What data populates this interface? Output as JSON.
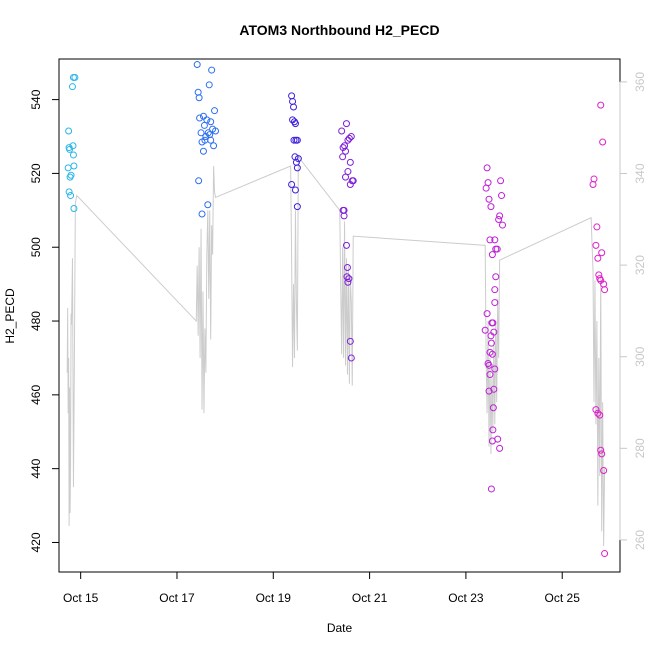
{
  "chart_data": {
    "type": "scatter",
    "title": "ATOM3 Northbound H2_PECD",
    "xlabel": "Date",
    "ylabel": "H2_PECD",
    "xlim": [
      14.55,
      26.2
    ],
    "ylim": [
      412,
      551
    ],
    "y2lim": [
      253,
      365
    ],
    "x_ticks": [
      {
        "x": 15,
        "label": "Oct 15"
      },
      {
        "x": 17,
        "label": "Oct 17"
      },
      {
        "x": 19,
        "label": "Oct 19"
      },
      {
        "x": 21,
        "label": "Oct 21"
      },
      {
        "x": 23,
        "label": "Oct 23"
      },
      {
        "x": 25,
        "label": "Oct 25"
      }
    ],
    "y_ticks": [
      {
        "v": 420,
        "label": "420"
      },
      {
        "v": 440,
        "label": "440"
      },
      {
        "v": 460,
        "label": "460"
      },
      {
        "v": 480,
        "label": "480"
      },
      {
        "v": 500,
        "label": "500"
      },
      {
        "v": 520,
        "label": "520"
      },
      {
        "v": 540,
        "label": "540"
      }
    ],
    "y2_ticks": [
      {
        "v": 260,
        "label": "260"
      },
      {
        "v": 280,
        "label": "280"
      },
      {
        "v": 300,
        "label": "300"
      },
      {
        "v": 320,
        "label": "320"
      },
      {
        "v": 340,
        "label": "340"
      },
      {
        "v": 360,
        "label": "360"
      }
    ],
    "grid": false,
    "series": [
      {
        "color": "#29b6e8",
        "points": [
          [
            14.75,
            531.5
          ],
          [
            14.74,
            521.5
          ],
          [
            14.76,
            527
          ],
          [
            14.77,
            526.5
          ],
          [
            14.78,
            519
          ],
          [
            14.8,
            519.5
          ],
          [
            14.76,
            515
          ],
          [
            14.79,
            514
          ],
          [
            14.84,
            527.5
          ],
          [
            14.85,
            525
          ],
          [
            14.86,
            522
          ],
          [
            14.86,
            510.5
          ],
          [
            14.83,
            543.5
          ],
          [
            14.85,
            546
          ],
          [
            14.88,
            546
          ]
        ]
      },
      {
        "color": "#2c6ff0",
        "points": [
          [
            17.42,
            549.5
          ],
          [
            17.44,
            542
          ],
          [
            17.46,
            540.5
          ],
          [
            17.47,
            535
          ],
          [
            17.5,
            531
          ],
          [
            17.52,
            528.5
          ],
          [
            17.55,
            535.5
          ],
          [
            17.57,
            533
          ],
          [
            17.6,
            530
          ],
          [
            17.62,
            534.5
          ],
          [
            17.65,
            531
          ],
          [
            17.67,
            544
          ],
          [
            17.7,
            534
          ],
          [
            17.72,
            548
          ],
          [
            17.74,
            532
          ],
          [
            17.76,
            527.5
          ],
          [
            17.78,
            537
          ],
          [
            17.8,
            531.5
          ],
          [
            17.45,
            518
          ],
          [
            17.52,
            509
          ],
          [
            17.55,
            526
          ],
          [
            17.58,
            529
          ],
          [
            17.64,
            511.5
          ],
          [
            17.68,
            530.5
          ],
          [
            17.7,
            529
          ]
        ]
      },
      {
        "color": "#3d20dd",
        "points": [
          [
            19.38,
            541
          ],
          [
            19.4,
            539.5
          ],
          [
            19.42,
            538
          ],
          [
            19.4,
            534.5
          ],
          [
            19.44,
            534
          ],
          [
            19.46,
            533.5
          ],
          [
            19.43,
            529
          ],
          [
            19.47,
            529
          ],
          [
            19.5,
            529
          ],
          [
            19.45,
            524.5
          ],
          [
            19.48,
            523
          ],
          [
            19.52,
            524
          ],
          [
            19.5,
            521.5
          ],
          [
            19.38,
            517
          ],
          [
            19.46,
            515.5
          ],
          [
            19.5,
            511
          ]
        ]
      },
      {
        "color": "#7f1fd8",
        "points": [
          [
            20.42,
            531.5
          ],
          [
            20.45,
            527
          ],
          [
            20.48,
            527.5
          ],
          [
            20.5,
            526
          ],
          [
            20.52,
            533.5
          ],
          [
            20.55,
            529
          ],
          [
            20.58,
            529.5
          ],
          [
            20.6,
            523
          ],
          [
            20.62,
            530
          ],
          [
            20.44,
            524.5
          ],
          [
            20.5,
            519
          ],
          [
            20.55,
            520.5
          ],
          [
            20.6,
            517
          ],
          [
            20.64,
            518
          ],
          [
            20.66,
            518
          ],
          [
            20.45,
            510
          ],
          [
            20.47,
            510
          ],
          [
            20.47,
            508.5
          ],
          [
            20.52,
            500.5
          ],
          [
            20.54,
            494.5
          ],
          [
            20.53,
            492
          ],
          [
            20.55,
            490.5
          ],
          [
            20.57,
            491.5
          ],
          [
            20.6,
            474.5
          ],
          [
            20.62,
            470
          ]
        ]
      },
      {
        "color": "#c020d8",
        "points": [
          [
            23.44,
            521.5
          ],
          [
            23.42,
            516
          ],
          [
            23.46,
            517.5
          ],
          [
            23.48,
            513
          ],
          [
            23.5,
            502
          ],
          [
            23.52,
            511
          ],
          [
            23.55,
            498
          ],
          [
            23.6,
            502
          ],
          [
            23.62,
            499.5
          ],
          [
            23.65,
            499.5
          ],
          [
            23.68,
            507.5
          ],
          [
            23.7,
            508.5
          ],
          [
            23.72,
            518
          ],
          [
            23.74,
            514
          ],
          [
            23.76,
            506
          ],
          [
            23.4,
            477.5
          ],
          [
            23.44,
            482
          ],
          [
            23.46,
            468.5
          ],
          [
            23.48,
            461
          ],
          [
            23.5,
            465.5
          ],
          [
            23.52,
            476
          ],
          [
            23.53,
            474
          ],
          [
            23.54,
            479.5
          ],
          [
            23.56,
            479.5
          ],
          [
            23.58,
            477
          ],
          [
            23.6,
            467
          ],
          [
            23.62,
            492
          ],
          [
            23.6,
            488.5
          ],
          [
            23.6,
            485
          ],
          [
            23.58,
            461.5
          ],
          [
            23.56,
            450.5
          ],
          [
            23.55,
            447.5
          ],
          [
            23.66,
            448
          ],
          [
            23.7,
            445.5
          ],
          [
            23.53,
            434.5
          ],
          [
            23.5,
            471.5
          ],
          [
            23.55,
            471
          ],
          [
            23.48,
            468
          ],
          [
            23.57,
            456.5
          ]
        ]
      },
      {
        "color": "#e020c8",
        "points": [
          [
            25.8,
            538.5
          ],
          [
            25.84,
            528.5
          ],
          [
            25.66,
            518.5
          ],
          [
            25.64,
            517
          ],
          [
            25.72,
            505.5
          ],
          [
            25.7,
            500.5
          ],
          [
            25.74,
            497
          ],
          [
            25.82,
            498.5
          ],
          [
            25.76,
            492.5
          ],
          [
            25.78,
            491.5
          ],
          [
            25.8,
            491
          ],
          [
            25.86,
            490
          ],
          [
            25.88,
            488.5
          ],
          [
            25.7,
            456
          ],
          [
            25.74,
            455
          ],
          [
            25.78,
            454.5
          ],
          [
            25.8,
            445
          ],
          [
            25.82,
            444
          ],
          [
            25.86,
            439.5
          ],
          [
            25.88,
            417
          ]
        ]
      }
    ],
    "line": {
      "color": "#cccccc",
      "points": [
        [
          14.72,
          466
        ],
        [
          14.73,
          483.5
        ],
        [
          14.74,
          455
        ],
        [
          14.75,
          470
        ],
        [
          14.76,
          424.5
        ],
        [
          14.77,
          462
        ],
        [
          14.78,
          428
        ],
        [
          14.79,
          441
        ],
        [
          14.8,
          482
        ],
        [
          14.81,
          479
        ],
        [
          14.83,
          497
        ],
        [
          14.84,
          468
        ],
        [
          14.85,
          435
        ],
        [
          14.86,
          452
        ],
        [
          14.87,
          470
        ],
        [
          14.88,
          492
        ],
        [
          14.89,
          512
        ],
        [
          14.92,
          514
        ],
        [
          17.4,
          480
        ],
        [
          17.42,
          495
        ],
        [
          17.44,
          476
        ],
        [
          17.46,
          500
        ],
        [
          17.48,
          470
        ],
        [
          17.5,
          505
        ],
        [
          17.52,
          456
        ],
        [
          17.54,
          488
        ],
        [
          17.56,
          455
        ],
        [
          17.58,
          478
        ],
        [
          17.6,
          466
        ],
        [
          17.62,
          498
        ],
        [
          17.64,
          510
        ],
        [
          17.66,
          486
        ],
        [
          17.68,
          510
        ],
        [
          17.7,
          475
        ],
        [
          17.72,
          506
        ],
        [
          17.74,
          498
        ],
        [
          17.76,
          522
        ],
        [
          17.78,
          515
        ],
        [
          17.8,
          513.5
        ],
        [
          19.36,
          522
        ],
        [
          19.38,
          498
        ],
        [
          19.4,
          467.5
        ],
        [
          19.42,
          490
        ],
        [
          19.44,
          470
        ],
        [
          19.46,
          510
        ],
        [
          19.48,
          485
        ],
        [
          19.5,
          472
        ],
        [
          19.52,
          525
        ],
        [
          19.55,
          524
        ],
        [
          20.38,
          510
        ],
        [
          20.4,
          490
        ],
        [
          20.42,
          471
        ],
        [
          20.44,
          500
        ],
        [
          20.46,
          470
        ],
        [
          20.48,
          507
        ],
        [
          20.5,
          468
        ],
        [
          20.52,
          497
        ],
        [
          20.54,
          465.5
        ],
        [
          20.56,
          495
        ],
        [
          20.58,
          463
        ],
        [
          20.6,
          492
        ],
        [
          20.62,
          485
        ],
        [
          20.64,
          462.5
        ],
        [
          20.66,
          503
        ],
        [
          23.4,
          500.5
        ],
        [
          23.42,
          470
        ],
        [
          23.44,
          455
        ],
        [
          23.46,
          480
        ],
        [
          23.48,
          446
        ],
        [
          23.5,
          470
        ],
        [
          23.52,
          444
        ],
        [
          23.54,
          465
        ],
        [
          23.56,
          450
        ],
        [
          23.58,
          475
        ],
        [
          23.6,
          452
        ],
        [
          23.62,
          480
        ],
        [
          23.64,
          458
        ],
        [
          23.66,
          486
        ],
        [
          23.68,
          470
        ],
        [
          23.7,
          496.5
        ],
        [
          25.6,
          508
        ],
        [
          25.64,
          493.5
        ],
        [
          25.66,
          458
        ],
        [
          25.68,
          491
        ],
        [
          25.7,
          452
        ],
        [
          25.72,
          480
        ],
        [
          25.74,
          430
        ],
        [
          25.76,
          470
        ],
        [
          25.78,
          438
        ],
        [
          25.8,
          492
        ],
        [
          25.82,
          423
        ],
        [
          25.84,
          458
        ],
        [
          25.86,
          419
        ],
        [
          25.88,
          440
        ]
      ]
    }
  }
}
